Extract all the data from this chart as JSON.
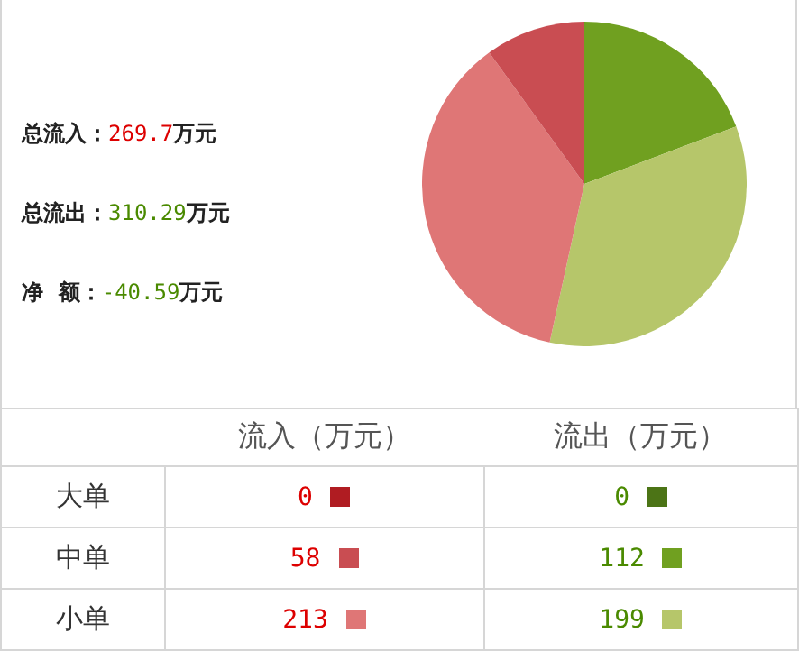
{
  "chart_data": [
    {
      "type": "pie",
      "categories": [
        null,
        null,
        null,
        null
      ],
      "values": [
        19.24,
        34.19,
        36.6,
        9.97
      ],
      "colors": [
        "#70a020",
        "#b6c66a",
        "#df7676",
        "#c94d52"
      ],
      "annotations": [
        "总流入：269.7万元",
        "总流出：310.29万元",
        "净  额：-40.59万元"
      ],
      "legend": false
    },
    {
      "type": "other",
      "categories": [
        "大单",
        "中单",
        "小单"
      ],
      "series": [
        {
          "name": "流入（万元）",
          "values": [
            0,
            58,
            213
          ],
          "colors": [
            "#b01c22",
            "#c94d52",
            "#df7676"
          ]
        },
        {
          "name": "流出（万元）",
          "values": [
            0,
            112,
            199
          ],
          "colors": [
            "#4c7416",
            "#70a020",
            "#b6c66a"
          ]
        }
      ],
      "data_labels": true
    }
  ]
}
